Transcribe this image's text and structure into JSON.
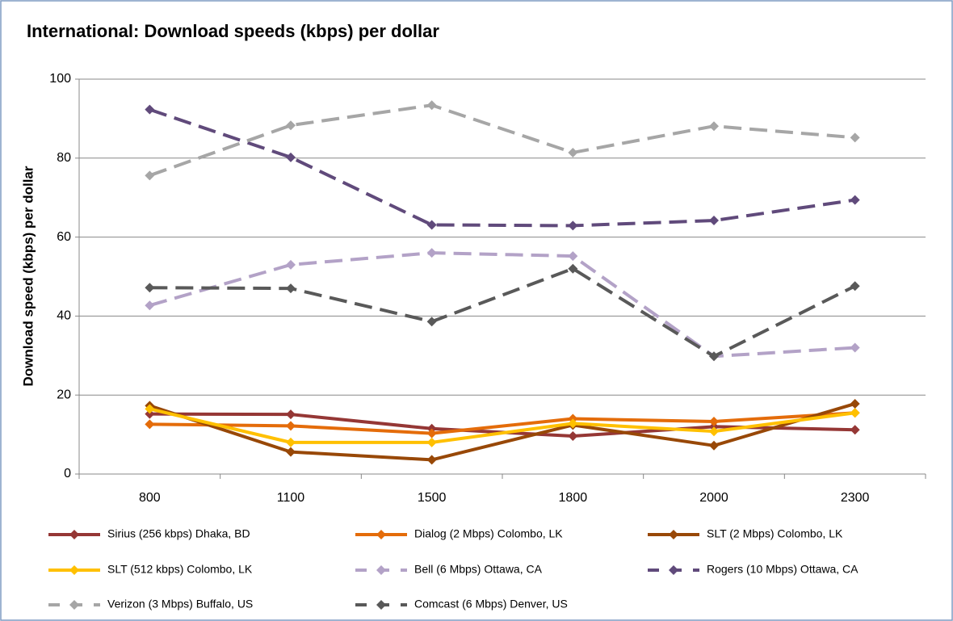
{
  "chart_data": {
    "type": "line",
    "title": "International: Download speeds (kbps) per dollar",
    "y_label": "Download speed (kbps) per dollar",
    "categories": [
      "800",
      "1100",
      "1500",
      "1800",
      "2000",
      "2300"
    ],
    "ylim": [
      0,
      100
    ],
    "yticks": [
      0,
      20,
      40,
      60,
      80,
      100
    ],
    "grid": true,
    "legend": "bottom",
    "series": [
      {
        "name": "Sirius (256 kbps) Dhaka, BD",
        "color": "#953735",
        "dashed": false,
        "values": [
          15.2,
          15.1,
          11.5,
          9.6,
          12,
          11.2
        ]
      },
      {
        "name": "Dialog (2 Mbps) Colombo, LK",
        "color": "#e46c0a",
        "dashed": false,
        "values": [
          12.6,
          12.2,
          10.3,
          14,
          13.3,
          15.5
        ]
      },
      {
        "name": "SLT (2 Mbps) Colombo, LK",
        "color": "#984807",
        "dashed": false,
        "values": [
          17.3,
          5.6,
          3.6,
          12.4,
          7.2,
          17.8
        ]
      },
      {
        "name": "SLT (512 kbps) Colombo, LK",
        "color": "#ffc000",
        "dashed": false,
        "values": [
          16.5,
          8,
          8,
          12.8,
          10.8,
          15.5
        ]
      },
      {
        "name": "Bell (6 Mbps) Ottawa, CA",
        "color": "#b3a2c7",
        "dashed": true,
        "values": [
          42.7,
          53,
          56,
          55.2,
          29.8,
          32
        ]
      },
      {
        "name": "Rogers (10 Mbps) Ottawa, CA",
        "color": "#604a7b",
        "dashed": true,
        "values": [
          92.3,
          80.2,
          63.1,
          62.9,
          64.2,
          69.4
        ]
      },
      {
        "name": "Verizon (3 Mbps) Buffalo, US",
        "color": "#a6a6a6",
        "dashed": true,
        "values": [
          75.6,
          88.3,
          93.4,
          81.4,
          88.1,
          85.2
        ]
      },
      {
        "name": "Comcast (6 Mbps) Denver, US",
        "color": "#595959",
        "dashed": true,
        "values": [
          47.2,
          47,
          38.6,
          52,
          29.8,
          47.6
        ]
      }
    ]
  }
}
